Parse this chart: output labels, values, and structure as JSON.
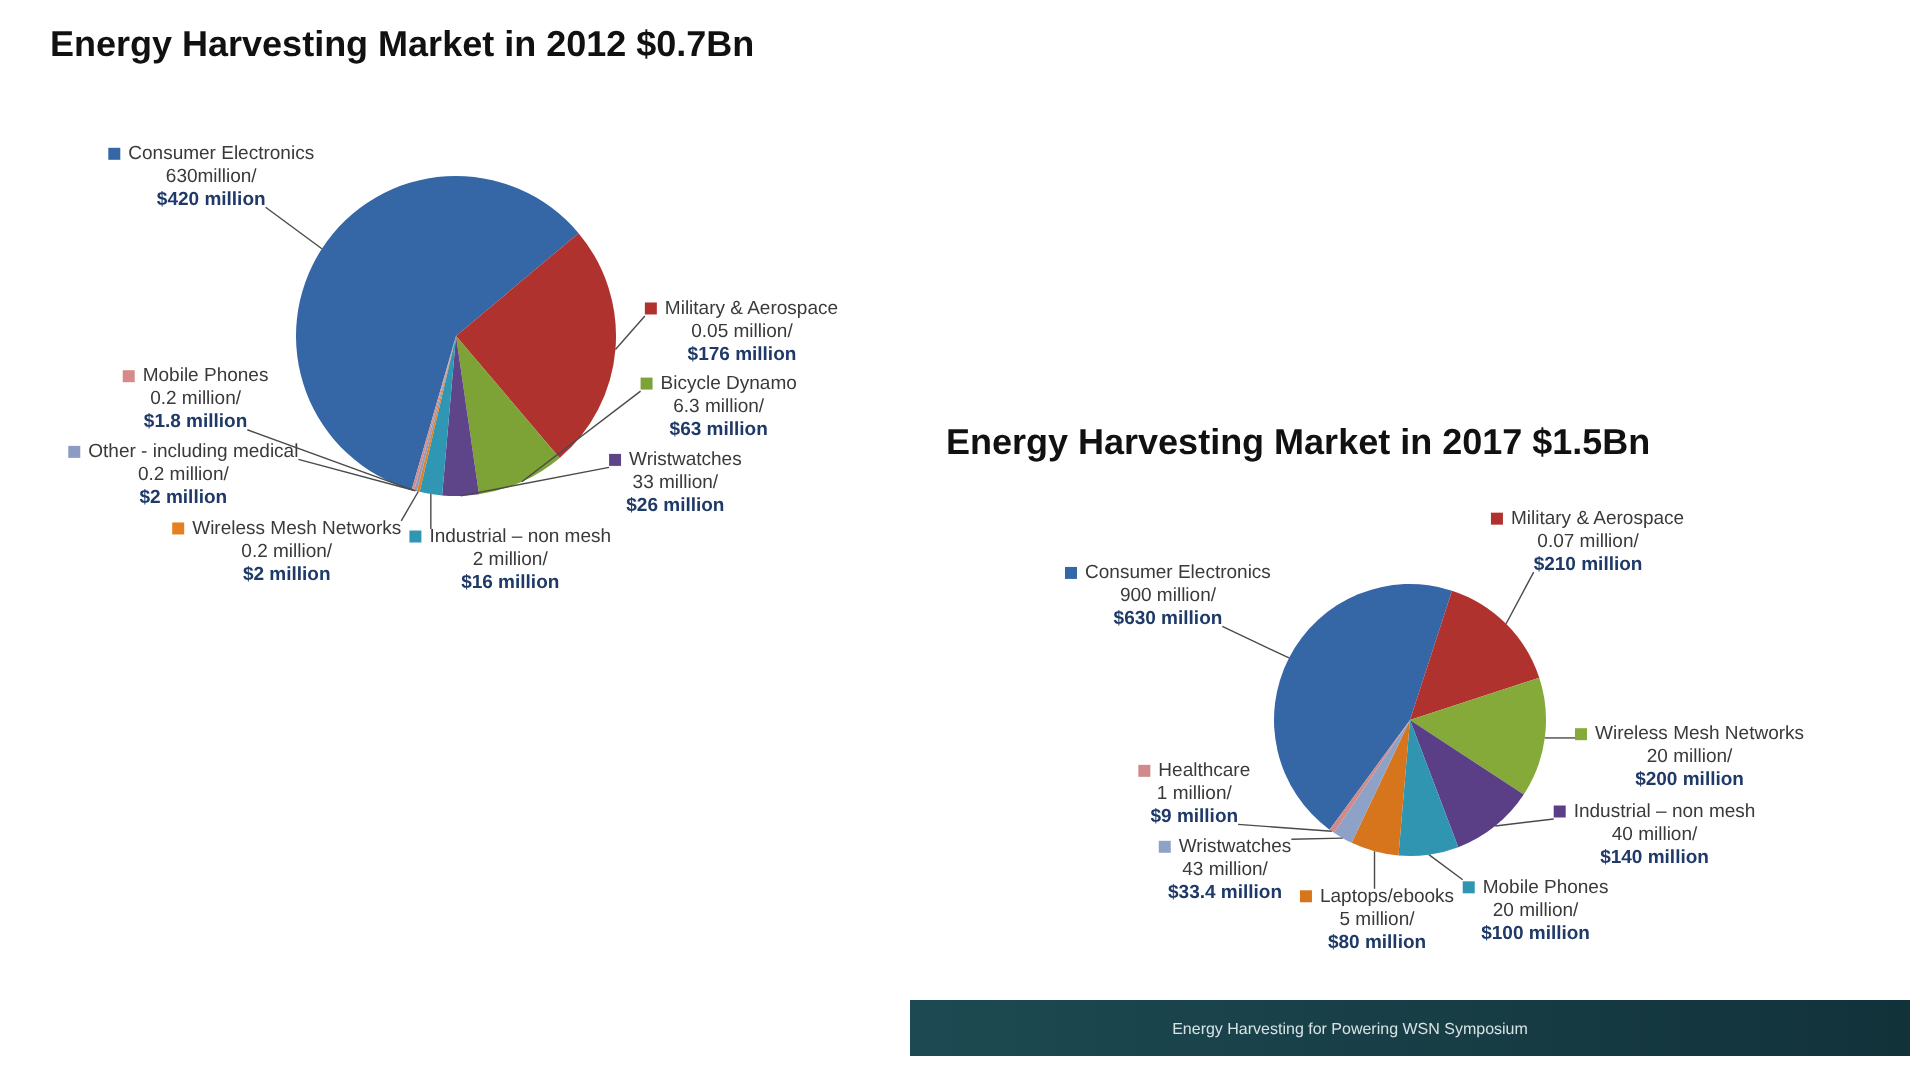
{
  "chart_data": [
    {
      "type": "pie",
      "title": "Energy Harvesting Market in 2012 $0.7Bn",
      "categories": [
        "Consumer Electronics 630million/",
        "Military & Aerospace 0.05 million/",
        "Bicycle Dynamo 6.3 million/",
        "Wristwatches 33 million/",
        "Industrial – non mesh 2 million/",
        "Wireless Mesh Networks 0.2 million/",
        "Other - including medical 0.2 million/",
        "Mobile Phones 0.2 million/"
      ],
      "values": [
        420,
        176,
        63,
        26,
        16,
        2,
        2,
        1.8
      ],
      "colors": [
        "#3566a6",
        "#b0322f",
        "#7da236",
        "#5e4489",
        "#2f96b3",
        "#e3801f",
        "#8a9cc4",
        "#d48b8a"
      ],
      "value_labels": [
        "$420 million",
        "$176 million",
        "$63 million",
        "$26 million",
        "$16 million",
        "$2 million",
        "$2 million",
        "$1.8 million"
      ],
      "legend": "right"
    },
    {
      "type": "pie",
      "title": "Energy Harvesting Market in 2017 $1.5Bn",
      "categories": [
        "Consumer Electronics 900 million/",
        "Military & Aerospace 0.07 million/",
        "Wireless Mesh Networks 20 million/",
        "Industrial – non mesh 40 million/",
        "Mobile Phones 20 million/",
        "Laptops/ebooks 5 million/",
        "Wristwatches 43 million/",
        "Healthcare 1 million/"
      ],
      "values": [
        630,
        210,
        200,
        140,
        100,
        80,
        33.4,
        9
      ],
      "colors": [
        "#3566a6",
        "#b0322f",
        "#86aa3a",
        "#5b3f86",
        "#2f95b0",
        "#d7751c",
        "#8ea2c8",
        "#d08a8a"
      ],
      "value_labels": [
        "$630 million",
        "$210 million",
        "$200 million",
        "$140 million",
        "$100 million",
        "$80 million",
        "$33.4 million",
        "$9 million"
      ],
      "legend": "right",
      "annotations": [
        "Energy Harvesting for Powering WSN Symposium"
      ]
    }
  ]
}
